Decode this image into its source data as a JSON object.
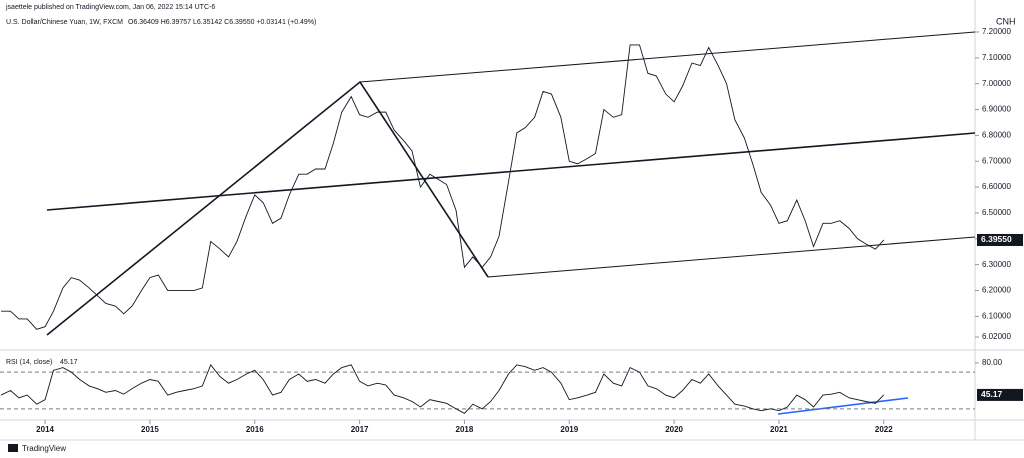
{
  "header": {
    "publisher": "jsaettele published on TradingView.com, Jan 06, 2022 15:14 UTC-6",
    "symbol": "CNH",
    "brand": "TradingView"
  },
  "chart_data": [
    {
      "type": "line",
      "title": "U.S. Dollar/Chinese Yuan, 1W, FXCM",
      "subtitle": "O6.36409 H6.39757 L6.35142 C6.39550 +0.03141 (+0.49%)",
      "x": [
        2013.58,
        2013.67,
        2013.75,
        2013.83,
        2013.92,
        2014.0,
        2014.08,
        2014.17,
        2014.25,
        2014.33,
        2014.42,
        2014.5,
        2014.58,
        2014.67,
        2014.75,
        2014.83,
        2014.92,
        2015.0,
        2015.08,
        2015.17,
        2015.25,
        2015.33,
        2015.42,
        2015.5,
        2015.58,
        2015.67,
        2015.75,
        2015.83,
        2015.92,
        2016.0,
        2016.08,
        2016.17,
        2016.25,
        2016.33,
        2016.42,
        2016.5,
        2016.58,
        2016.67,
        2016.75,
        2016.83,
        2016.92,
        2017.0,
        2017.08,
        2017.17,
        2017.25,
        2017.33,
        2017.42,
        2017.5,
        2017.58,
        2017.67,
        2017.75,
        2017.83,
        2017.92,
        2018.0,
        2018.08,
        2018.17,
        2018.25,
        2018.33,
        2018.42,
        2018.5,
        2018.58,
        2018.67,
        2018.75,
        2018.83,
        2018.92,
        2019.0,
        2019.08,
        2019.17,
        2019.25,
        2019.33,
        2019.42,
        2019.5,
        2019.58,
        2019.67,
        2019.75,
        2019.83,
        2019.92,
        2020.0,
        2020.08,
        2020.17,
        2020.25,
        2020.33,
        2020.42,
        2020.5,
        2020.58,
        2020.67,
        2020.75,
        2020.83,
        2020.92,
        2021.0,
        2021.08,
        2021.17,
        2021.25,
        2021.33,
        2021.42,
        2021.5,
        2021.58,
        2021.67,
        2021.75,
        2021.83,
        2021.92,
        2022.0
      ],
      "series": [
        {
          "name": "U.S. Dollar/Chinese Yuan",
          "color": "#131722",
          "values": [
            6.12,
            6.12,
            6.09,
            6.09,
            6.05,
            6.06,
            6.12,
            6.21,
            6.25,
            6.24,
            6.21,
            6.18,
            6.15,
            6.14,
            6.11,
            6.14,
            6.2,
            6.25,
            6.26,
            6.2,
            6.2,
            6.2,
            6.2,
            6.21,
            6.39,
            6.36,
            6.33,
            6.39,
            6.49,
            6.57,
            6.54,
            6.46,
            6.48,
            6.57,
            6.65,
            6.65,
            6.67,
            6.67,
            6.77,
            6.89,
            6.95,
            6.88,
            6.87,
            6.89,
            6.89,
            6.82,
            6.78,
            6.74,
            6.6,
            6.65,
            6.63,
            6.61,
            6.51,
            6.29,
            6.33,
            6.29,
            6.33,
            6.41,
            6.62,
            6.81,
            6.83,
            6.87,
            6.97,
            6.96,
            6.87,
            6.7,
            6.69,
            6.71,
            6.73,
            6.9,
            6.87,
            6.88,
            7.15,
            7.15,
            7.04,
            7.03,
            6.96,
            6.93,
            6.99,
            7.08,
            7.07,
            7.14,
            7.07,
            7.0,
            6.86,
            6.79,
            6.69,
            6.58,
            6.53,
            6.46,
            6.47,
            6.55,
            6.47,
            6.37,
            6.46,
            6.46,
            6.47,
            6.44,
            6.4,
            6.38,
            6.36,
            6.3955
          ]
        }
      ],
      "last": {
        "value": 6.3955,
        "label": "6.39550"
      },
      "xlim": [
        2013.57,
        2022.87
      ],
      "xticks": [
        2014,
        2015,
        2016,
        2017,
        2018,
        2019,
        2020,
        2021,
        2022
      ],
      "ylim": [
        5.97,
        7.285
      ],
      "yticks": [
        {
          "value": 6.02,
          "label": "6.02000"
        },
        {
          "value": 6.1,
          "label": "6.10000"
        },
        {
          "value": 6.2,
          "label": "6.20000"
        },
        {
          "value": 6.3,
          "label": "6.30000"
        },
        {
          "value": 6.4,
          "label": "6.40000"
        },
        {
          "value": 6.5,
          "label": "6.50000"
        },
        {
          "value": 6.6,
          "label": "6.60000"
        },
        {
          "value": 6.7,
          "label": "6.70000"
        },
        {
          "value": 6.8,
          "label": "6.80000"
        },
        {
          "value": 6.9,
          "label": "6.90000"
        },
        {
          "value": 7.0,
          "label": "7.00000"
        },
        {
          "value": 7.1,
          "label": "7.10000"
        },
        {
          "value": 7.2,
          "label": "7.20000"
        }
      ]
    },
    {
      "type": "line",
      "title": "RSI (14, close)",
      "x": [
        2013.58,
        2013.67,
        2013.75,
        2013.83,
        2013.92,
        2014.0,
        2014.08,
        2014.17,
        2014.25,
        2014.33,
        2014.42,
        2014.5,
        2014.58,
        2014.67,
        2014.75,
        2014.83,
        2014.92,
        2015.0,
        2015.08,
        2015.17,
        2015.25,
        2015.33,
        2015.42,
        2015.5,
        2015.58,
        2015.67,
        2015.75,
        2015.83,
        2015.92,
        2016.0,
        2016.08,
        2016.17,
        2016.25,
        2016.33,
        2016.42,
        2016.5,
        2016.58,
        2016.67,
        2016.75,
        2016.83,
        2016.92,
        2017.0,
        2017.08,
        2017.17,
        2017.25,
        2017.33,
        2017.42,
        2017.5,
        2017.58,
        2017.67,
        2017.75,
        2017.83,
        2017.92,
        2018.0,
        2018.08,
        2018.17,
        2018.25,
        2018.33,
        2018.42,
        2018.5,
        2018.58,
        2018.67,
        2018.75,
        2018.83,
        2018.92,
        2019.0,
        2019.08,
        2019.17,
        2019.25,
        2019.33,
        2019.42,
        2019.5,
        2019.58,
        2019.67,
        2019.75,
        2019.83,
        2019.92,
        2020.0,
        2020.08,
        2020.17,
        2020.25,
        2020.33,
        2020.42,
        2020.5,
        2020.58,
        2020.67,
        2020.75,
        2020.83,
        2020.92,
        2021.0,
        2021.08,
        2021.17,
        2021.25,
        2021.33,
        2021.42,
        2021.5,
        2021.58,
        2021.67,
        2021.75,
        2021.83,
        2021.92,
        2022.0
      ],
      "series": [
        {
          "name": "RSI",
          "color": "#131722",
          "values": [
            45,
            50,
            42,
            45,
            35,
            40,
            72,
            75,
            70,
            62,
            55,
            52,
            48,
            50,
            46,
            52,
            58,
            62,
            60,
            45,
            48,
            50,
            52,
            55,
            78,
            65,
            58,
            62,
            68,
            72,
            62,
            45,
            48,
            62,
            68,
            60,
            62,
            58,
            68,
            75,
            78,
            60,
            55,
            58,
            56,
            45,
            42,
            38,
            32,
            40,
            38,
            36,
            30,
            25,
            35,
            30,
            38,
            50,
            68,
            78,
            76,
            72,
            75,
            70,
            58,
            40,
            42,
            45,
            48,
            68,
            58,
            55,
            75,
            70,
            55,
            52,
            45,
            42,
            50,
            62,
            58,
            68,
            55,
            45,
            35,
            33,
            30,
            28,
            30,
            28,
            32,
            45,
            40,
            32,
            45,
            46,
            48,
            42,
            40,
            38,
            36,
            45.17
          ]
        }
      ],
      "last": 45.17,
      "bands": [
        70,
        30
      ],
      "xlim": [
        2013.57,
        2022.87
      ],
      "ylim": [
        20,
        92
      ],
      "yticks": [
        {
          "value": 80,
          "label": "80.00"
        }
      ]
    }
  ]
}
